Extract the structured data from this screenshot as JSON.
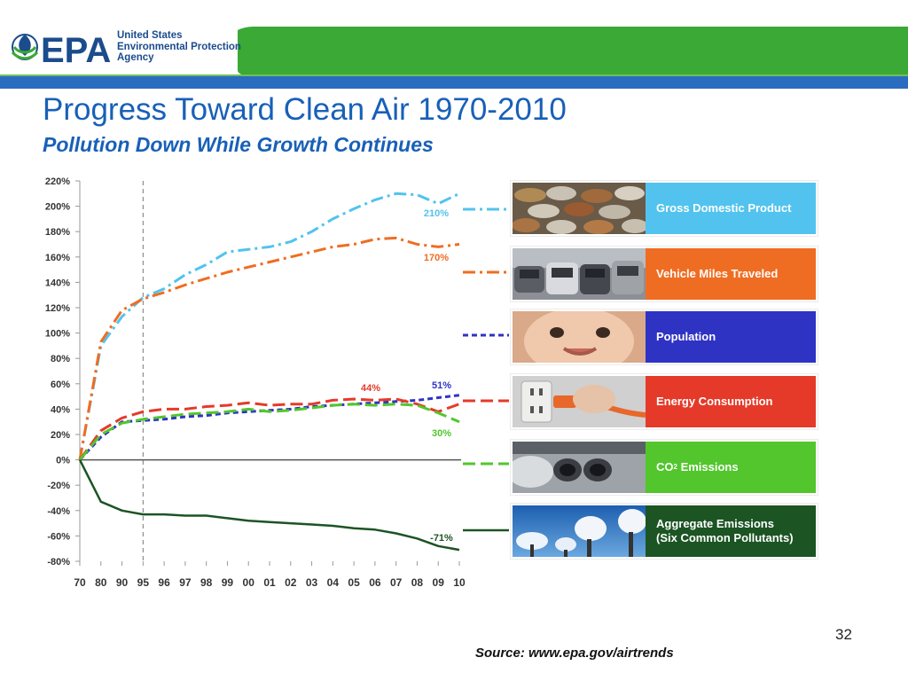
{
  "header": {
    "logo_mark": "EPA",
    "agency_lines": [
      "United States",
      "Environmental Protection",
      "Agency"
    ],
    "title": "Progress Toward Clean Air 1970-2010",
    "subtitle": "Pollution Down While Growth Continues"
  },
  "footer": {
    "page_number": "32",
    "source": "Source: www.epa.gov/airtrends"
  },
  "colors": {
    "banner_green": "#3ba935",
    "banner_blue": "#2a6cbf",
    "gdp": "#52c3ee",
    "vmt": "#ef6d22",
    "population": "#2f33c4",
    "energy": "#e53a2a",
    "co2": "#52c62c",
    "aggregate": "#1c5424"
  },
  "chart_data": {
    "type": "line",
    "title": "",
    "xlabel": "",
    "ylabel": "",
    "ylim": [
      -80,
      220
    ],
    "x": [
      "70",
      "80",
      "90",
      "95",
      "96",
      "97",
      "98",
      "99",
      "00",
      "01",
      "02",
      "03",
      "04",
      "05",
      "06",
      "07",
      "08",
      "09",
      "10"
    ],
    "yticks": [
      "220%",
      "200%",
      "180%",
      "160%",
      "140%",
      "120%",
      "100%",
      "80%",
      "60%",
      "40%",
      "20%",
      "0%",
      "-20%",
      "-40%",
      "-60%",
      "-80%"
    ],
    "reference_line_x": "95",
    "grid": false,
    "legend_position": "right",
    "series": [
      {
        "name": "Gross Domestic Product",
        "color": "#52c3ee",
        "dash": "dashdot",
        "end_label": "210%",
        "values": [
          0,
          90,
          113,
          128,
          135,
          146,
          154,
          164,
          166,
          168,
          172,
          180,
          190,
          198,
          205,
          210,
          209,
          202,
          210
        ]
      },
      {
        "name": "Vehicle Miles Traveled",
        "color": "#ef6d22",
        "dash": "dashdot",
        "end_label": "170%",
        "values": [
          0,
          93,
          118,
          127,
          132,
          138,
          143,
          148,
          152,
          156,
          160,
          164,
          168,
          170,
          174,
          175,
          170,
          168,
          170
        ]
      },
      {
        "name": "Population",
        "color": "#2f33c4",
        "dash": "dashed",
        "end_label": "51%",
        "values": [
          0,
          18,
          30,
          31,
          32,
          34,
          35,
          37,
          38,
          39,
          40,
          42,
          43,
          44,
          45,
          46,
          47,
          49,
          51
        ]
      },
      {
        "name": "Energy Consumption",
        "color": "#e53a2a",
        "dash": "longdash",
        "end_label": "44%",
        "values": [
          0,
          23,
          33,
          38,
          40,
          40,
          42,
          43,
          45,
          43,
          44,
          44,
          47,
          48,
          47,
          48,
          44,
          38,
          44
        ]
      },
      {
        "name": "CO2 Emissions",
        "color": "#52c62c",
        "dash": "longdash",
        "end_label": "30%",
        "values": [
          0,
          20,
          29,
          32,
          34,
          36,
          37,
          38,
          40,
          38,
          39,
          41,
          43,
          44,
          43,
          44,
          43,
          37,
          30
        ]
      },
      {
        "name": "Aggregate Emissions (Six Common Pollutants)",
        "color": "#1c5424",
        "dash": "solid",
        "end_label": "-71%",
        "values": [
          0,
          -33,
          -40,
          -43,
          -43,
          -44,
          -44,
          -46,
          -48,
          -49,
          -50,
          -51,
          -52,
          -54,
          -55,
          -58,
          -62,
          -68,
          -71
        ]
      }
    ]
  },
  "legend": [
    {
      "label": "Gross Domestic Product",
      "color": "#52c3ee"
    },
    {
      "label": "Vehicle Miles Traveled",
      "color": "#ef6d22"
    },
    {
      "label": "Population",
      "color": "#2f33c4"
    },
    {
      "label": "Energy Consumption",
      "color": "#e53a2a"
    },
    {
      "label": "CO",
      "sub": "2",
      "suffix": " Emissions",
      "color": "#52c62c"
    },
    {
      "label": "Aggregate Emissions",
      "line2": "(Six Common Pollutants)",
      "color": "#1c5424"
    }
  ]
}
